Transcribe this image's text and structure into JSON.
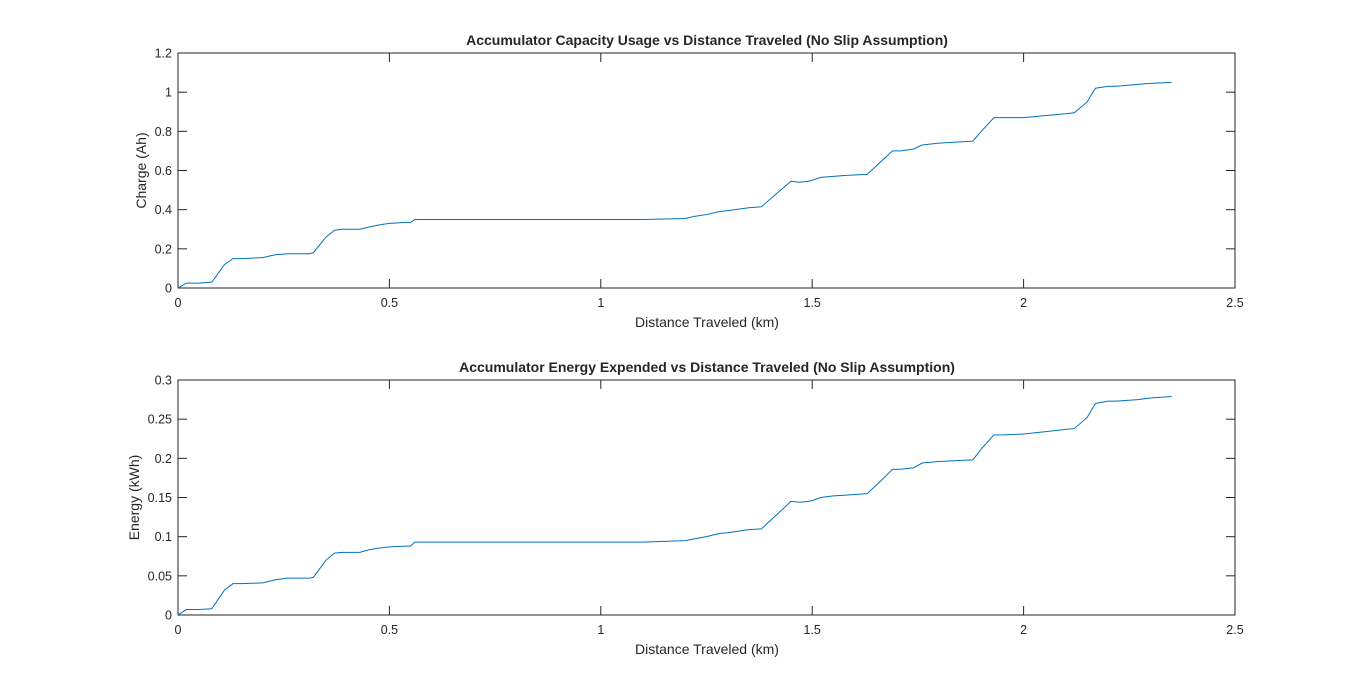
{
  "figure": {
    "background": "#ffffff"
  },
  "chart_data": [
    {
      "type": "line",
      "title": "Accumulator Capacity Usage vs Distance Traveled (No Slip Assumption)",
      "xlabel": "Distance Traveled (km)",
      "ylabel": "Charge (Ah)",
      "xlim": [
        0,
        2.5
      ],
      "ylim": [
        0,
        1.2
      ],
      "xticks": [
        0,
        0.5,
        1,
        1.5,
        2,
        2.5
      ],
      "xtick_labels": [
        "0",
        "0.5",
        "1",
        "1.5",
        "2",
        "2.5"
      ],
      "yticks": [
        0,
        0.2,
        0.4,
        0.6,
        0.8,
        1,
        1.2
      ],
      "ytick_labels": [
        "0",
        "0.2",
        "0.4",
        "0.6",
        "0.8",
        "1",
        "1.2"
      ],
      "grid": false,
      "color": "#0072BD",
      "series": [
        {
          "x": [
            0,
            0.02,
            0.03,
            0.05,
            0.08,
            0.11,
            0.13,
            0.15,
            0.2,
            0.23,
            0.26,
            0.31,
            0.32,
            0.35,
            0.37,
            0.39,
            0.41,
            0.43,
            0.45,
            0.47,
            0.5,
            0.54,
            0.55,
            0.56,
            0.6,
            0.7,
            0.9,
            1.1,
            1.2,
            1.22,
            1.25,
            1.28,
            1.3,
            1.35,
            1.38,
            1.42,
            1.45,
            1.47,
            1.49,
            1.5,
            1.52,
            1.55,
            1.58,
            1.63,
            1.66,
            1.69,
            1.71,
            1.74,
            1.76,
            1.8,
            1.84,
            1.88,
            1.9,
            1.93,
            1.95,
            2.0,
            2.05,
            2.1,
            2.12,
            2.15,
            2.17,
            2.2,
            2.22,
            2.27,
            2.3,
            2.35
          ],
          "y": [
            0,
            0.025,
            0.025,
            0.025,
            0.03,
            0.12,
            0.15,
            0.15,
            0.155,
            0.17,
            0.175,
            0.175,
            0.18,
            0.26,
            0.295,
            0.3,
            0.3,
            0.3,
            0.31,
            0.32,
            0.33,
            0.335,
            0.335,
            0.35,
            0.35,
            0.35,
            0.35,
            0.35,
            0.355,
            0.365,
            0.375,
            0.39,
            0.395,
            0.41,
            0.415,
            0.49,
            0.545,
            0.54,
            0.545,
            0.55,
            0.565,
            0.57,
            0.575,
            0.58,
            0.64,
            0.7,
            0.7,
            0.71,
            0.73,
            0.74,
            0.745,
            0.75,
            0.8,
            0.87,
            0.87,
            0.87,
            0.88,
            0.89,
            0.895,
            0.95,
            1.02,
            1.03,
            1.03,
            1.04,
            1.045,
            1.05
          ]
        }
      ]
    },
    {
      "type": "line",
      "title": "Accumulator Energy Expended vs Distance Traveled (No Slip Assumption)",
      "xlabel": "Distance Traveled (km)",
      "ylabel": "Energy (kWh)",
      "xlim": [
        0,
        2.5
      ],
      "ylim": [
        0,
        0.3
      ],
      "xticks": [
        0,
        0.5,
        1,
        1.5,
        2,
        2.5
      ],
      "xtick_labels": [
        "0",
        "0.5",
        "1",
        "1.5",
        "2",
        "2.5"
      ],
      "yticks": [
        0,
        0.05,
        0.1,
        0.15,
        0.2,
        0.25,
        0.3
      ],
      "ytick_labels": [
        "0",
        "0.05",
        "0.1",
        "0.15",
        "0.2",
        "0.25",
        "0.3"
      ],
      "grid": false,
      "color": "#0072BD",
      "series": [
        {
          "x": [
            0,
            0.02,
            0.03,
            0.05,
            0.08,
            0.11,
            0.13,
            0.15,
            0.2,
            0.23,
            0.26,
            0.31,
            0.32,
            0.35,
            0.37,
            0.39,
            0.41,
            0.43,
            0.45,
            0.47,
            0.5,
            0.54,
            0.55,
            0.56,
            0.6,
            0.7,
            0.9,
            1.1,
            1.2,
            1.22,
            1.25,
            1.28,
            1.3,
            1.35,
            1.38,
            1.42,
            1.45,
            1.47,
            1.49,
            1.5,
            1.52,
            1.55,
            1.58,
            1.63,
            1.66,
            1.69,
            1.71,
            1.74,
            1.76,
            1.8,
            1.84,
            1.88,
            1.9,
            1.93,
            1.95,
            2.0,
            2.05,
            2.1,
            2.12,
            2.15,
            2.17,
            2.2,
            2.22,
            2.27,
            2.3,
            2.35
          ],
          "y": [
            0,
            0.007,
            0.007,
            0.007,
            0.008,
            0.032,
            0.04,
            0.04,
            0.041,
            0.045,
            0.047,
            0.047,
            0.048,
            0.07,
            0.079,
            0.08,
            0.08,
            0.08,
            0.083,
            0.085,
            0.087,
            0.088,
            0.088,
            0.093,
            0.093,
            0.093,
            0.093,
            0.093,
            0.095,
            0.097,
            0.1,
            0.104,
            0.105,
            0.109,
            0.11,
            0.13,
            0.145,
            0.144,
            0.145,
            0.146,
            0.15,
            0.152,
            0.153,
            0.155,
            0.17,
            0.186,
            0.186,
            0.188,
            0.194,
            0.196,
            0.197,
            0.198,
            0.212,
            0.23,
            0.23,
            0.231,
            0.234,
            0.237,
            0.238,
            0.252,
            0.27,
            0.273,
            0.273,
            0.275,
            0.277,
            0.279
          ]
        }
      ]
    }
  ]
}
